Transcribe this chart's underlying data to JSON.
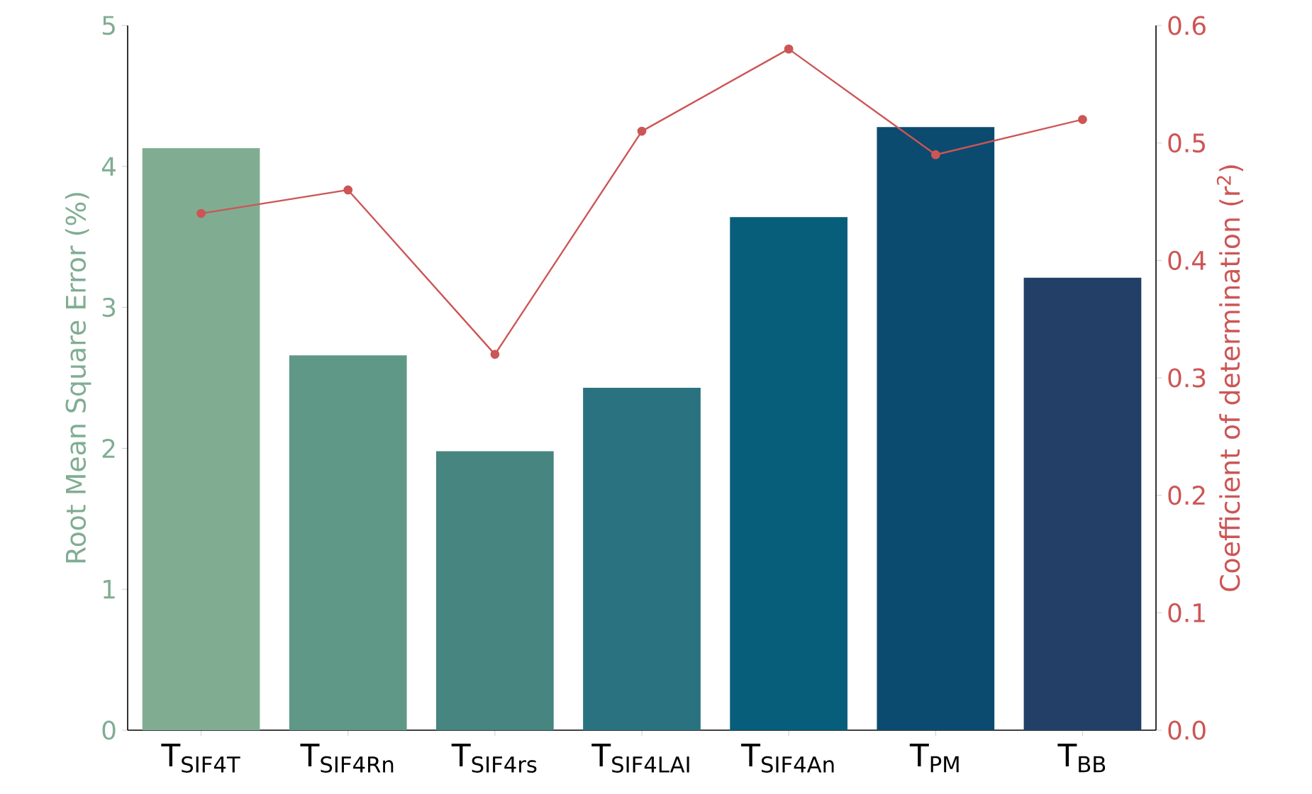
{
  "chart_data": {
    "type": "bar",
    "categories": [
      "T$_{SIF4T}$",
      "T$_{SIF4Rn}$",
      "T$_{SIF4rs}$",
      "T$_{SIF4LAI}$",
      "T$_{SIF4An}$",
      "T$_{PM}$",
      "T$_{BB}$"
    ],
    "series": [
      {
        "colors": [
          "#80ad92",
          "#5f9886",
          "#468580",
          "#2a7280",
          "#075e7a",
          "#0b4b6f",
          "#233f68"
        ],
        "values": [
          4.13,
          2.66,
          1.98,
          2.43,
          3.64,
          4.28,
          3.21
        ]
      },
      {
        "type": "line",
        "axis": "y2",
        "color": "#cd5555",
        "values": [
          0.44,
          0.46,
          0.32,
          0.51,
          0.58,
          0.49,
          0.52
        ]
      }
    ],
    "ylabel": "Root Mean Square Error (%)",
    "y2label": "Coefficient of determination (r$^{2}$)",
    "ylim": [
      0,
      5
    ],
    "yticks": [
      0,
      1,
      2,
      3,
      4,
      5
    ],
    "y2lim": [
      0,
      0.6
    ],
    "y2ticks": [
      {
        "value": 0,
        "label": "0.0"
      },
      0.1,
      0.2,
      0.3,
      0.4,
      0.5,
      0.6
    ],
    "marker": "circle"
  }
}
